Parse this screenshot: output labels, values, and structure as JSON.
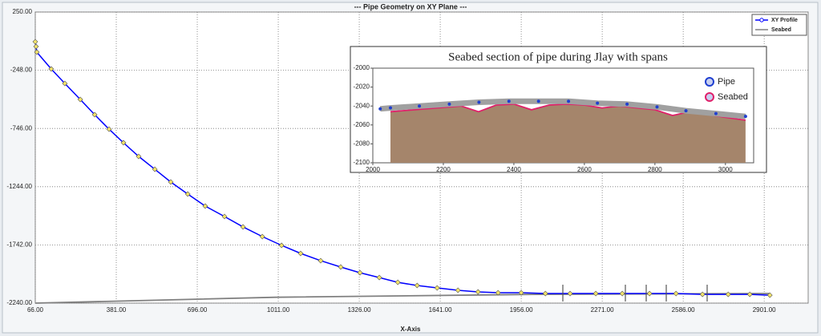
{
  "chart_data": [
    {
      "type": "line",
      "title": "--- Pipe Geometry on XY Plane ---",
      "xlabel": "X-Axis",
      "xlim": [
        66,
        3072
      ],
      "ylim": [
        -2240,
        250
      ],
      "grid": true,
      "legend": "top-right",
      "xticks": [
        {
          "value": 66,
          "label": "66.00"
        },
        {
          "value": 381,
          "label": "381.00"
        },
        {
          "value": 696,
          "label": "696.00"
        },
        {
          "value": 1011,
          "label": "1011.00"
        },
        {
          "value": 1326,
          "label": "1326.00"
        },
        {
          "value": 1641,
          "label": "1641.00"
        },
        {
          "value": 1956,
          "label": "1956.00"
        },
        {
          "value": 2271,
          "label": "2271.00"
        },
        {
          "value": 2586,
          "label": "2586.00"
        },
        {
          "value": 2901,
          "label": "2901.00"
        }
      ],
      "yticks": [
        {
          "value": 250,
          "label": "250.00"
        },
        {
          "value": -248,
          "label": "-248.00"
        },
        {
          "value": -746,
          "label": "-746.00"
        },
        {
          "value": -1244,
          "label": "-1244.00"
        },
        {
          "value": -1742,
          "label": "-1742.00"
        },
        {
          "value": -2240,
          "label": "-2240.00"
        }
      ],
      "series": [
        {
          "name": "XY Profile",
          "color": "#0000ff",
          "marker_color": "#f2e36a",
          "x": [
            66,
            69,
            72,
            128,
            181,
            241,
            297,
            353,
            409,
            468,
            531,
            593,
            659,
            727,
            802,
            874,
            949,
            1024,
            1098,
            1176,
            1254,
            1329,
            1404,
            1476,
            1551,
            1629,
            1710,
            1788,
            1866,
            1956,
            2050,
            2146,
            2246,
            2349,
            2455,
            2558,
            2661,
            2761,
            2845,
            2923
          ],
          "values": [
            -4,
            -45,
            -93,
            -237,
            -361,
            -498,
            -628,
            -752,
            -868,
            -985,
            -1095,
            -1204,
            -1307,
            -1410,
            -1499,
            -1588,
            -1671,
            -1746,
            -1815,
            -1877,
            -1931,
            -1980,
            -2021,
            -2062,
            -2089,
            -2110,
            -2130,
            -2144,
            -2151,
            -2151,
            -2158,
            -2158,
            -2158,
            -2158,
            -2158,
            -2158,
            -2165,
            -2165,
            -2165,
            -2172
          ]
        },
        {
          "name": "Seabed",
          "color": "#808080",
          "x": [
            66,
            1000,
            2000,
            2923
          ],
          "values": [
            -2240,
            -2190,
            -2165,
            -2158
          ]
        }
      ]
    },
    {
      "type": "line",
      "title": "Seabed section of pipe during Jlay with spans",
      "xlim": [
        2000,
        3080
      ],
      "ylim": [
        -2100,
        -2000
      ],
      "grid": false,
      "legend": "right",
      "xticks": [
        2000,
        2200,
        2400,
        2600,
        2800,
        3000
      ],
      "yticks": [
        -2000,
        -2020,
        -2040,
        -2060,
        -2080,
        -2100
      ],
      "series": [
        {
          "name": "Pipe",
          "color": "#1f3fd0",
          "band_color": "#a0a0a0",
          "x": [
            2021,
            2050,
            2132,
            2217,
            2301,
            2386,
            2470,
            2555,
            2637,
            2721,
            2806,
            2888,
            2973,
            3057
          ],
          "values": [
            -2043,
            -2042,
            -2040,
            -2038,
            -2036,
            -2035,
            -2035,
            -2035,
            -2037,
            -2038,
            -2041,
            -2045,
            -2048,
            -2051
          ]
        },
        {
          "name": "Seabed",
          "color": "#e0206a",
          "fill": "#a5856b",
          "x": [
            2050,
            2150,
            2250,
            2300,
            2350,
            2400,
            2450,
            2500,
            2550,
            2600,
            2650,
            2700,
            2750,
            2800,
            2850,
            2900,
            2950,
            3000,
            3057
          ],
          "values": [
            -2046,
            -2043,
            -2040,
            -2046,
            -2039,
            -2038,
            -2044,
            -2039,
            -2038,
            -2039,
            -2042,
            -2040,
            -2042,
            -2044,
            -2050,
            -2046,
            -2049,
            -2052,
            -2055
          ]
        }
      ]
    }
  ]
}
